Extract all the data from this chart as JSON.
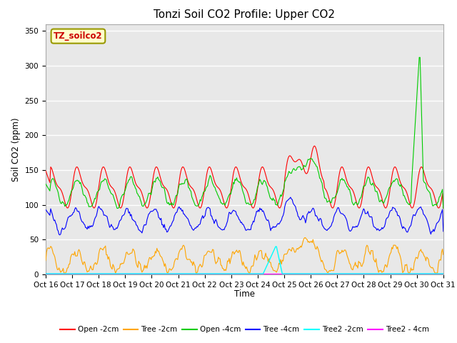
{
  "title": "Tonzi Soil CO2 Profile: Upper CO2",
  "ylabel": "Soil CO2 (ppm)",
  "xlabel": "Time",
  "box_label": "TZ_soilco2",
  "ylim": [
    0,
    360
  ],
  "yticks": [
    0,
    50,
    100,
    150,
    200,
    250,
    300,
    350
  ],
  "xtick_labels": [
    "Oct 16",
    "Oct 17",
    "Oct 18",
    "Oct 19",
    "Oct 20",
    "Oct 21",
    "Oct 22",
    "Oct 23",
    "Oct 24",
    "Oct 25",
    "Oct 26",
    "Oct 27",
    "Oct 28",
    "Oct 29",
    "Oct 30",
    "Oct 31"
  ],
  "legend_entries": [
    {
      "label": "Open -2cm",
      "color": "#ff0000"
    },
    {
      "label": "Tree -2cm",
      "color": "#ffa500"
    },
    {
      "label": "Open -4cm",
      "color": "#00cc00"
    },
    {
      "label": "Tree -4cm",
      "color": "#0000ff"
    },
    {
      "label": "Tree2 -2cm",
      "color": "#00ffff"
    },
    {
      "label": "Tree2 - 4cm",
      "color": "#ff00ff"
    }
  ],
  "plot_bg_color": "#e8e8e8",
  "n_points": 480
}
